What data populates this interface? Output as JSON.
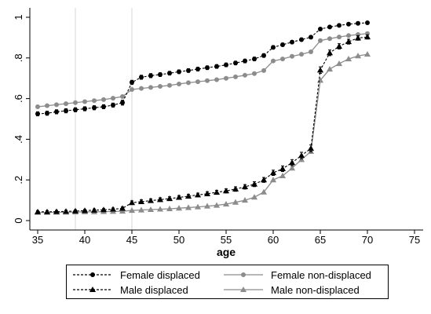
{
  "chart_data": {
    "type": "line",
    "title": "",
    "xlabel": "age",
    "ylabel": "",
    "xlim": [
      35,
      75
    ],
    "ylim": [
      0,
      1
    ],
    "x_ticks": [
      "35",
      "40",
      "45",
      "50",
      "55",
      "60",
      "65",
      "70",
      "75"
    ],
    "y_ticks": [
      "0",
      ".2",
      ".4",
      ".6",
      ".8",
      "1"
    ],
    "reference_lines_x": [
      39,
      45
    ],
    "grid": false,
    "legend_position": "bottom",
    "series": [
      {
        "name": "Female displaced",
        "color": "#000000",
        "style": "dashed",
        "marker": "circle",
        "x": [
          35,
          36,
          37,
          38,
          39,
          40,
          41,
          42,
          43,
          44,
          45,
          46,
          47,
          48,
          49,
          50,
          51,
          52,
          53,
          54,
          55,
          56,
          57,
          58,
          59,
          60,
          61,
          62,
          63,
          64,
          65,
          66,
          67,
          68,
          69,
          70
        ],
        "y": [
          0.525,
          0.528,
          0.535,
          0.54,
          0.545,
          0.55,
          0.555,
          0.56,
          0.568,
          0.58,
          0.68,
          0.705,
          0.713,
          0.718,
          0.725,
          0.732,
          0.738,
          0.745,
          0.752,
          0.758,
          0.766,
          0.775,
          0.785,
          0.795,
          0.812,
          0.852,
          0.865,
          0.878,
          0.89,
          0.902,
          0.942,
          0.952,
          0.96,
          0.966,
          0.97,
          0.973
        ],
        "err": [
          0.01,
          0.01,
          0.01,
          0.01,
          0.01,
          0.01,
          0.01,
          0.01,
          0.01,
          0.012,
          0.01,
          0.01,
          0.01,
          0.009,
          0.009,
          0.009,
          0.009,
          0.009,
          0.009,
          0.009,
          0.009,
          0.009,
          0.009,
          0.009,
          0.009,
          0.008,
          0.008,
          0.008,
          0.008,
          0.008,
          0.006,
          0.006,
          0.006,
          0.006,
          0.006,
          0.006
        ]
      },
      {
        "name": "Female non-displaced",
        "color": "#8c8c8c",
        "style": "solid",
        "marker": "circle",
        "x": [
          35,
          36,
          37,
          38,
          39,
          40,
          41,
          42,
          43,
          44,
          45,
          46,
          47,
          48,
          49,
          50,
          51,
          52,
          53,
          54,
          55,
          56,
          57,
          58,
          59,
          60,
          61,
          62,
          63,
          64,
          65,
          66,
          67,
          68,
          69,
          70
        ],
        "y": [
          0.56,
          0.565,
          0.57,
          0.575,
          0.58,
          0.585,
          0.59,
          0.595,
          0.602,
          0.61,
          0.645,
          0.65,
          0.655,
          0.66,
          0.665,
          0.672,
          0.678,
          0.683,
          0.688,
          0.693,
          0.7,
          0.707,
          0.715,
          0.723,
          0.738,
          0.785,
          0.795,
          0.808,
          0.818,
          0.83,
          0.885,
          0.895,
          0.903,
          0.91,
          0.915,
          0.92
        ]
      },
      {
        "name": "Male displaced",
        "color": "#000000",
        "style": "dashed",
        "marker": "triangle",
        "x": [
          35,
          36,
          37,
          38,
          39,
          40,
          41,
          42,
          43,
          44,
          45,
          46,
          47,
          48,
          49,
          50,
          51,
          52,
          53,
          54,
          55,
          56,
          57,
          58,
          59,
          60,
          61,
          62,
          63,
          64,
          65,
          66,
          67,
          68,
          69,
          70
        ],
        "y": [
          0.043,
          0.043,
          0.044,
          0.045,
          0.047,
          0.049,
          0.051,
          0.053,
          0.056,
          0.06,
          0.088,
          0.093,
          0.098,
          0.103,
          0.108,
          0.114,
          0.12,
          0.126,
          0.132,
          0.139,
          0.146,
          0.155,
          0.166,
          0.179,
          0.2,
          0.235,
          0.255,
          0.285,
          0.32,
          0.355,
          0.74,
          0.825,
          0.857,
          0.88,
          0.898,
          0.903
        ],
        "err": [
          0.006,
          0.006,
          0.006,
          0.006,
          0.006,
          0.006,
          0.006,
          0.006,
          0.006,
          0.007,
          0.009,
          0.009,
          0.009,
          0.009,
          0.009,
          0.009,
          0.009,
          0.009,
          0.01,
          0.01,
          0.01,
          0.011,
          0.011,
          0.012,
          0.012,
          0.013,
          0.014,
          0.015,
          0.016,
          0.017,
          0.016,
          0.014,
          0.013,
          0.012,
          0.011,
          0.01
        ]
      },
      {
        "name": "Male non-displaced",
        "color": "#8c8c8c",
        "style": "solid",
        "marker": "triangle",
        "x": [
          35,
          36,
          37,
          38,
          39,
          40,
          41,
          42,
          43,
          44,
          45,
          46,
          47,
          48,
          49,
          50,
          51,
          52,
          53,
          54,
          55,
          56,
          57,
          58,
          59,
          60,
          61,
          62,
          63,
          64,
          65,
          66,
          67,
          68,
          69,
          70
        ],
        "y": [
          0.04,
          0.04,
          0.041,
          0.041,
          0.042,
          0.043,
          0.043,
          0.044,
          0.045,
          0.046,
          0.05,
          0.052,
          0.054,
          0.056,
          0.058,
          0.061,
          0.064,
          0.067,
          0.071,
          0.075,
          0.081,
          0.09,
          0.1,
          0.115,
          0.14,
          0.2,
          0.22,
          0.258,
          0.3,
          0.34,
          0.69,
          0.745,
          0.772,
          0.795,
          0.81,
          0.818
        ]
      }
    ]
  }
}
